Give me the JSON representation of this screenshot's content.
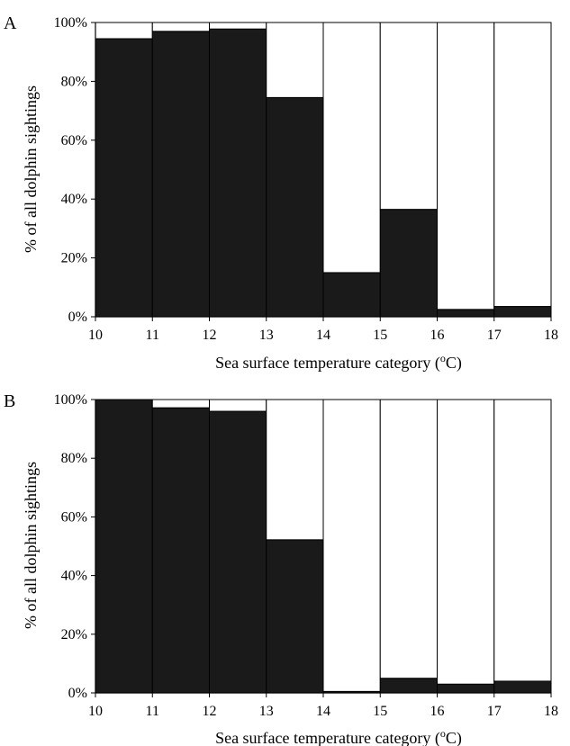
{
  "chart_data": [
    {
      "type": "bar",
      "stacked": true,
      "panel_label": "A",
      "categories": [
        "10",
        "11",
        "12",
        "13",
        "14",
        "15",
        "16",
        "17"
      ],
      "x_ticks": [
        "10",
        "11",
        "12",
        "13",
        "14",
        "15",
        "16",
        "17",
        "18"
      ],
      "series": [
        {
          "color": "#1a1a1a",
          "values": [
            94.5,
            97,
            97.8,
            74.5,
            15,
            36.5,
            2.5,
            3.5
          ]
        },
        {
          "color": "#ffffff",
          "values": [
            5.5,
            3,
            2.2,
            25.5,
            85,
            63.5,
            97.5,
            96.5
          ]
        }
      ],
      "y_ticks": [
        "0%",
        "20%",
        "40%",
        "60%",
        "80%",
        "100%"
      ],
      "xlabel": "Sea surface temperature category (",
      "xlabel_unit_sup": "o",
      "xlabel_unit_rest": "C)",
      "ylabel": "% of all dolphin sightings",
      "ylim": [
        0,
        100
      ]
    },
    {
      "type": "bar",
      "stacked": true,
      "panel_label": "B",
      "categories": [
        "10",
        "11",
        "12",
        "13",
        "14",
        "15",
        "16",
        "17"
      ],
      "x_ticks": [
        "10",
        "11",
        "12",
        "13",
        "14",
        "15",
        "16",
        "17",
        "18"
      ],
      "series": [
        {
          "color": "#1a1a1a",
          "values": [
            100,
            97.2,
            96,
            52.2,
            0.5,
            5,
            3,
            4
          ]
        },
        {
          "color": "#ffffff",
          "values": [
            0,
            2.8,
            4,
            47.8,
            99.5,
            95,
            97,
            96
          ]
        }
      ],
      "y_ticks": [
        "0%",
        "20%",
        "40%",
        "60%",
        "80%",
        "100%"
      ],
      "xlabel": "Sea surface temperature category (",
      "xlabel_unit_sup": "o",
      "xlabel_unit_rest": "C)",
      "ylabel": "% of all dolphin sightings",
      "ylim": [
        0,
        100
      ]
    }
  ]
}
